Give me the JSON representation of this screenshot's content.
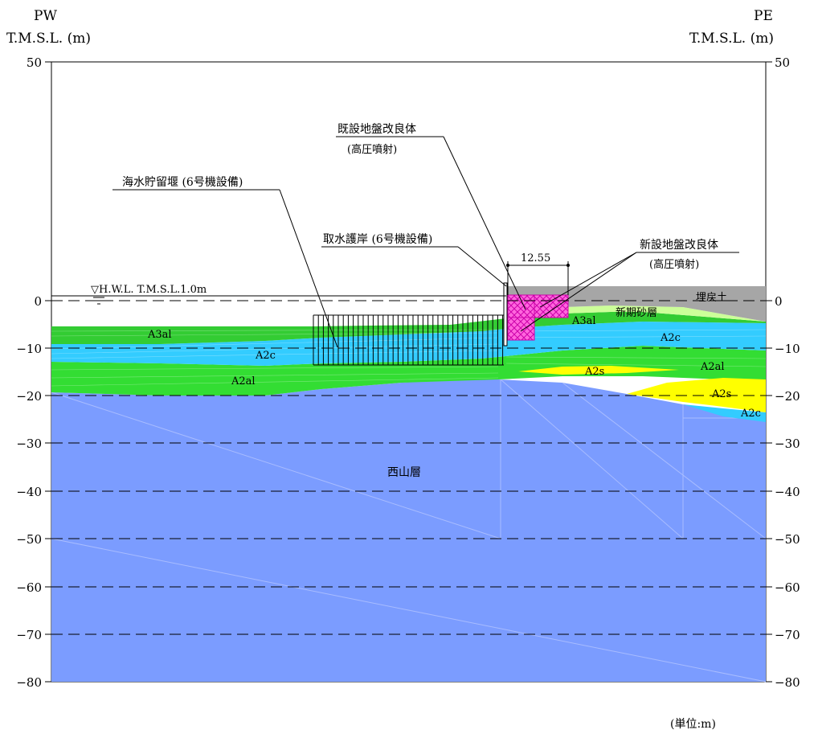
{
  "header": {
    "left_title": "PW",
    "left_unit": "T.M.S.L. (m)",
    "right_title": "PE",
    "right_unit": "T.M.S.L. (m)"
  },
  "axis": {
    "ticks": [
      "50",
      "0",
      "−10",
      "−20",
      "−30",
      "−40",
      "−50",
      "−60",
      "−70",
      "−80"
    ],
    "ylim": [
      -80,
      50
    ]
  },
  "water_level": "▽H.W.L.  T.M.S.L.1.0m",
  "dimension": "12.55",
  "annotations": {
    "existing_improvement": "既設地盤改良体",
    "existing_improvement_sub": "(高圧噴射)",
    "new_improvement": "新設地盤改良体",
    "new_improvement_sub": "(高圧噴射)",
    "seawater_weir": "海水貯留堰 (6号機設備)",
    "intake_revetment": "取水護岸 (6号機設備)"
  },
  "layers": {
    "fill": "埋戻土",
    "shinki_sand": "新期砂層",
    "a3al_left": "A3al",
    "a3al_right": "A3al",
    "a2c_left": "A2c",
    "a2c_right": "A2c",
    "a2c_far": "A2c",
    "a2al_left": "A2al",
    "a2al_right": "A2al",
    "a2s_mid": "A2s",
    "a2s_right": "A2s",
    "nishiyama": "西山層"
  },
  "unit_note": "(単位:m)",
  "colors": {
    "fill": "#a6a6a6",
    "sand": "#ccff99",
    "a3al": "#33cc33",
    "a2c": "#33ccff",
    "a2al": "#33dd33",
    "a2s": "#ffff00",
    "nishiyama": "#7b9cff",
    "improvement": "#ff55dd"
  }
}
